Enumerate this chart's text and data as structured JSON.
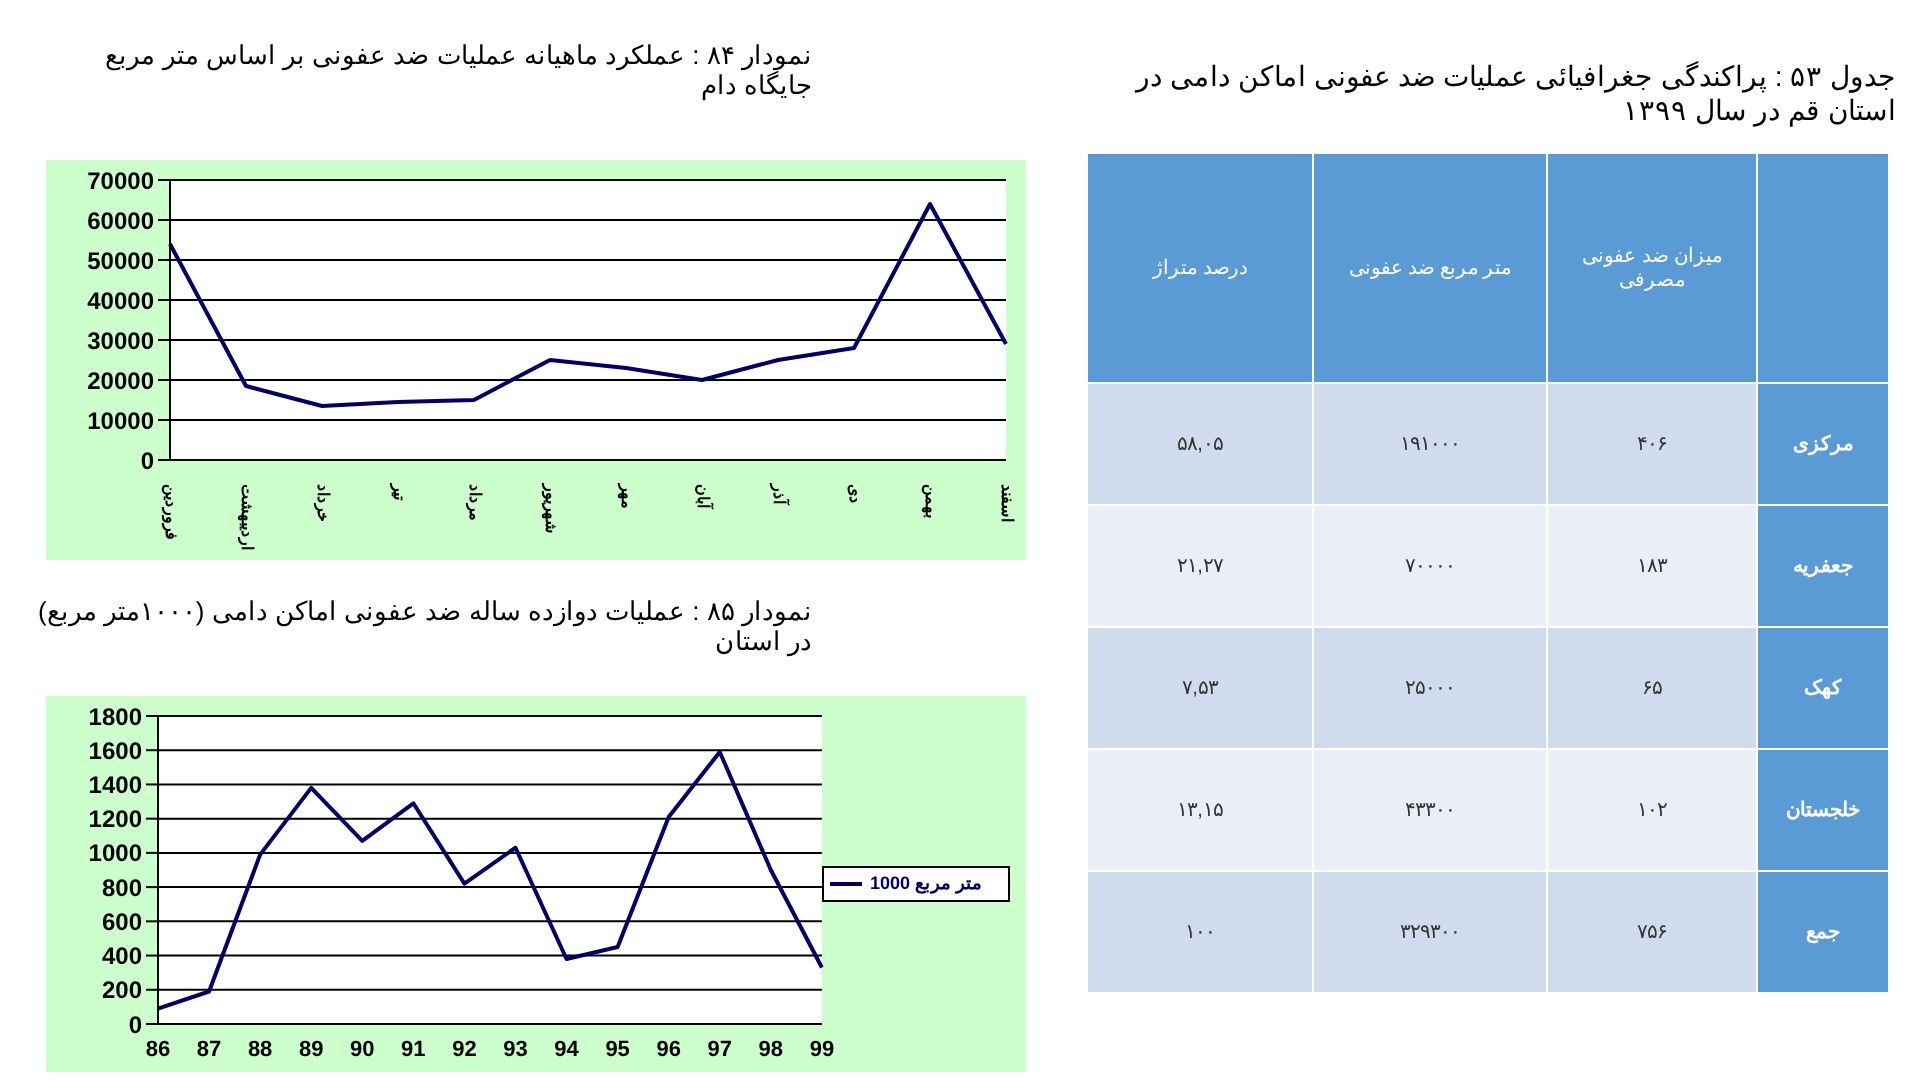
{
  "chart_data": [
    {
      "type": "line",
      "title": "نمودار ۸۴ : عملکرد ماهیانه عملیات ضد عفونی بر اساس متر مربع جایگاه دام",
      "categories": [
        "فروردین",
        "اردیبهشت",
        "خرداد",
        "تیر",
        "مرداد",
        "شهریور",
        "مهر",
        "آبان",
        "آذر",
        "دی",
        "بهمن",
        "اسفند"
      ],
      "series": [
        {
          "color": "#000066",
          "values": [
            54000,
            18500,
            13500,
            14500,
            15000,
            25000,
            23000,
            20000,
            25000,
            28000,
            64000,
            29000
          ]
        }
      ],
      "ylim": [
        0,
        70000
      ],
      "yticks": [
        0,
        10000,
        20000,
        30000,
        40000,
        50000,
        60000,
        70000
      ],
      "grid": "y",
      "legend": false
    },
    {
      "type": "line",
      "title": "نمودار ۸۵ : عملیات دوازده ساله ضد عفونی اماکن دامی (۱۰۰۰متر مربع) در استان",
      "categories": [
        "86",
        "87",
        "88",
        "89",
        "90",
        "91",
        "92",
        "93",
        "94",
        "95",
        "96",
        "97",
        "98",
        "99"
      ],
      "series": [
        {
          "name": "متر مربع 1000",
          "color": "#000066",
          "values": [
            90,
            190,
            990,
            1380,
            1070,
            1290,
            820,
            1030,
            380,
            450,
            1210,
            1590,
            900,
            330
          ]
        }
      ],
      "ylim": [
        0,
        1800
      ],
      "yticks": [
        0,
        200,
        400,
        600,
        800,
        1000,
        1200,
        1400,
        1600,
        1800
      ],
      "grid": "y",
      "legend": "right"
    },
    {
      "type": "other",
      "title": "جدول ۵۳ : پراکندگی جغرافیائی عملیات ضد عفونی اماکن دامی در استان قم در سال ۱۳۹۹",
      "categories": [
        "درصد متراژ",
        "متر مربع ضد عفونی",
        "میزان ضد عفونی مصرفی"
      ],
      "y_categories": [
        "مرکزی",
        "جعفریه",
        "کهک",
        "خلجستان",
        "جمع"
      ],
      "cell_labels": [
        [
          "۵۸,۰۵",
          "۱۹۱۰۰۰",
          "۴۰۶"
        ],
        [
          "۲۱,۲۷",
          "۷۰۰۰۰",
          "۱۸۳"
        ],
        [
          "۷,۵۳",
          "۲۵۰۰۰",
          "۶۵"
        ],
        [
          "۱۳,۱۵",
          "۴۳۳۰۰",
          "۱۰۲"
        ],
        [
          "۱۰۰",
          "۳۲۹۳۰۰",
          "۷۵۶"
        ]
      ]
    }
  ]
}
